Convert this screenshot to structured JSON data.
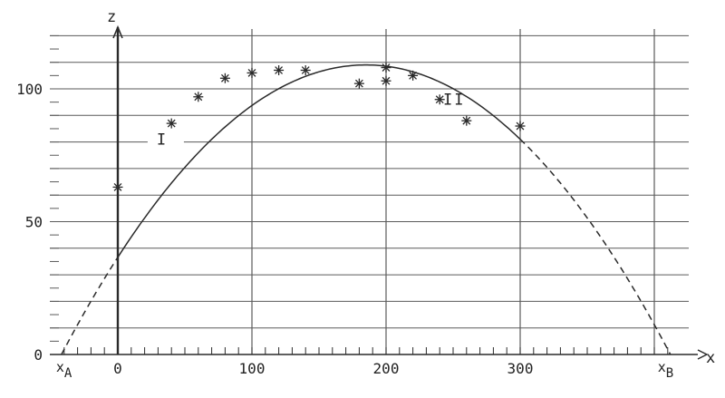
{
  "chart_data": {
    "type": "scatter",
    "title": "",
    "xlabel": "x",
    "ylabel": "z",
    "xlim": [
      -45,
      420
    ],
    "ylim": [
      0,
      123
    ],
    "grid": true,
    "x_ticks": [
      0,
      100,
      200,
      300
    ],
    "y_ticks": [
      0,
      50,
      100
    ],
    "x_endpoint_labels": [
      {
        "main": "x",
        "sub": "A",
        "x": -42
      },
      {
        "main": "x",
        "sub": "B",
        "x": 412
      }
    ],
    "region_labels": [
      {
        "text": "I",
        "x": 29,
        "z": 79
      },
      {
        "text": "II",
        "x": 248,
        "z": 94
      }
    ],
    "series": [
      {
        "type": "scatter",
        "marker": "asterisk",
        "points": [
          [
            0,
            63
          ],
          [
            40,
            87
          ],
          [
            60,
            97
          ],
          [
            80,
            104
          ],
          [
            100,
            106
          ],
          [
            120,
            107
          ],
          [
            140,
            107
          ],
          [
            180,
            102
          ],
          [
            200,
            103
          ],
          [
            200,
            108
          ],
          [
            220,
            105
          ],
          [
            240,
            96
          ],
          [
            260,
            88
          ],
          [
            300,
            86
          ]
        ]
      },
      {
        "type": "line",
        "style": "solid",
        "x_range": [
          0,
          300
        ]
      },
      {
        "type": "line",
        "style": "dashed",
        "x_range": [
          -42,
          0
        ]
      },
      {
        "type": "line",
        "style": "dashed",
        "x_range": [
          300,
          412
        ]
      }
    ]
  },
  "colors": {
    "background": "#ffffff",
    "ink": "#2a2a2a",
    "grid": "#5a5a5a"
  }
}
